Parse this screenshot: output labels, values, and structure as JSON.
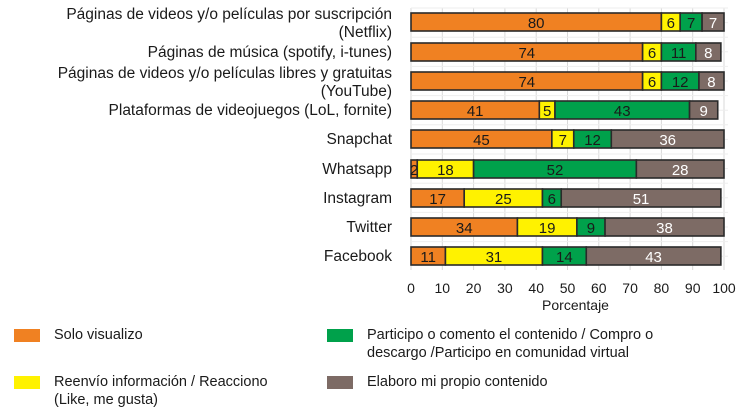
{
  "chart_data": {
    "type": "bar",
    "orientation": "horizontal",
    "stacked": true,
    "categories": [
      [
        "Páginas de videos y/o películas por suscripción",
        "(Netflix)"
      ],
      [
        "Páginas de música (spotify, i-tunes)"
      ],
      [
        "Páginas de videos y/o películas libres y gratuitas",
        "(YouTube)"
      ],
      [
        "Plataformas de videojuegos (LoL, fornite)"
      ],
      [
        "Snapchat"
      ],
      [
        "Whatsapp"
      ],
      [
        "Instagram"
      ],
      [
        "Twitter"
      ],
      [
        "Facebook"
      ]
    ],
    "series": [
      {
        "name": "Solo visualizo",
        "color": "#F08122",
        "values": [
          80,
          74,
          74,
          41,
          45,
          2,
          17,
          34,
          11
        ]
      },
      {
        "name": "Reenvío información / Reacciono (Like, me gusta)",
        "legend_lines": [
          "Reenvío información / Reacciono",
          "(Like, me gusta)"
        ],
        "color": "#FFF200",
        "values": [
          6,
          6,
          6,
          5,
          7,
          18,
          25,
          19,
          31
        ]
      },
      {
        "name": "Participo o comento el contenido / Compro o descargo /Participo en comunidad virtual",
        "legend_lines": [
          "Participo o comento el contenido / Compro o",
          "descargo /Participo en comunidad virtual"
        ],
        "color": "#00A14B",
        "values": [
          7,
          11,
          12,
          43,
          12,
          52,
          6,
          9,
          14
        ]
      },
      {
        "name": "Elaboro mi propio contenido",
        "color": "#7D6B65",
        "values": [
          7,
          8,
          8,
          9,
          36,
          28,
          51,
          38,
          43
        ]
      }
    ],
    "xlabel": "Porcentaje",
    "xlim": [
      0,
      100
    ],
    "xticks": [
      0,
      10,
      20,
      30,
      40,
      50,
      60,
      70,
      80,
      90,
      100
    ],
    "grid": "vertical",
    "legend_position": "bottom"
  }
}
